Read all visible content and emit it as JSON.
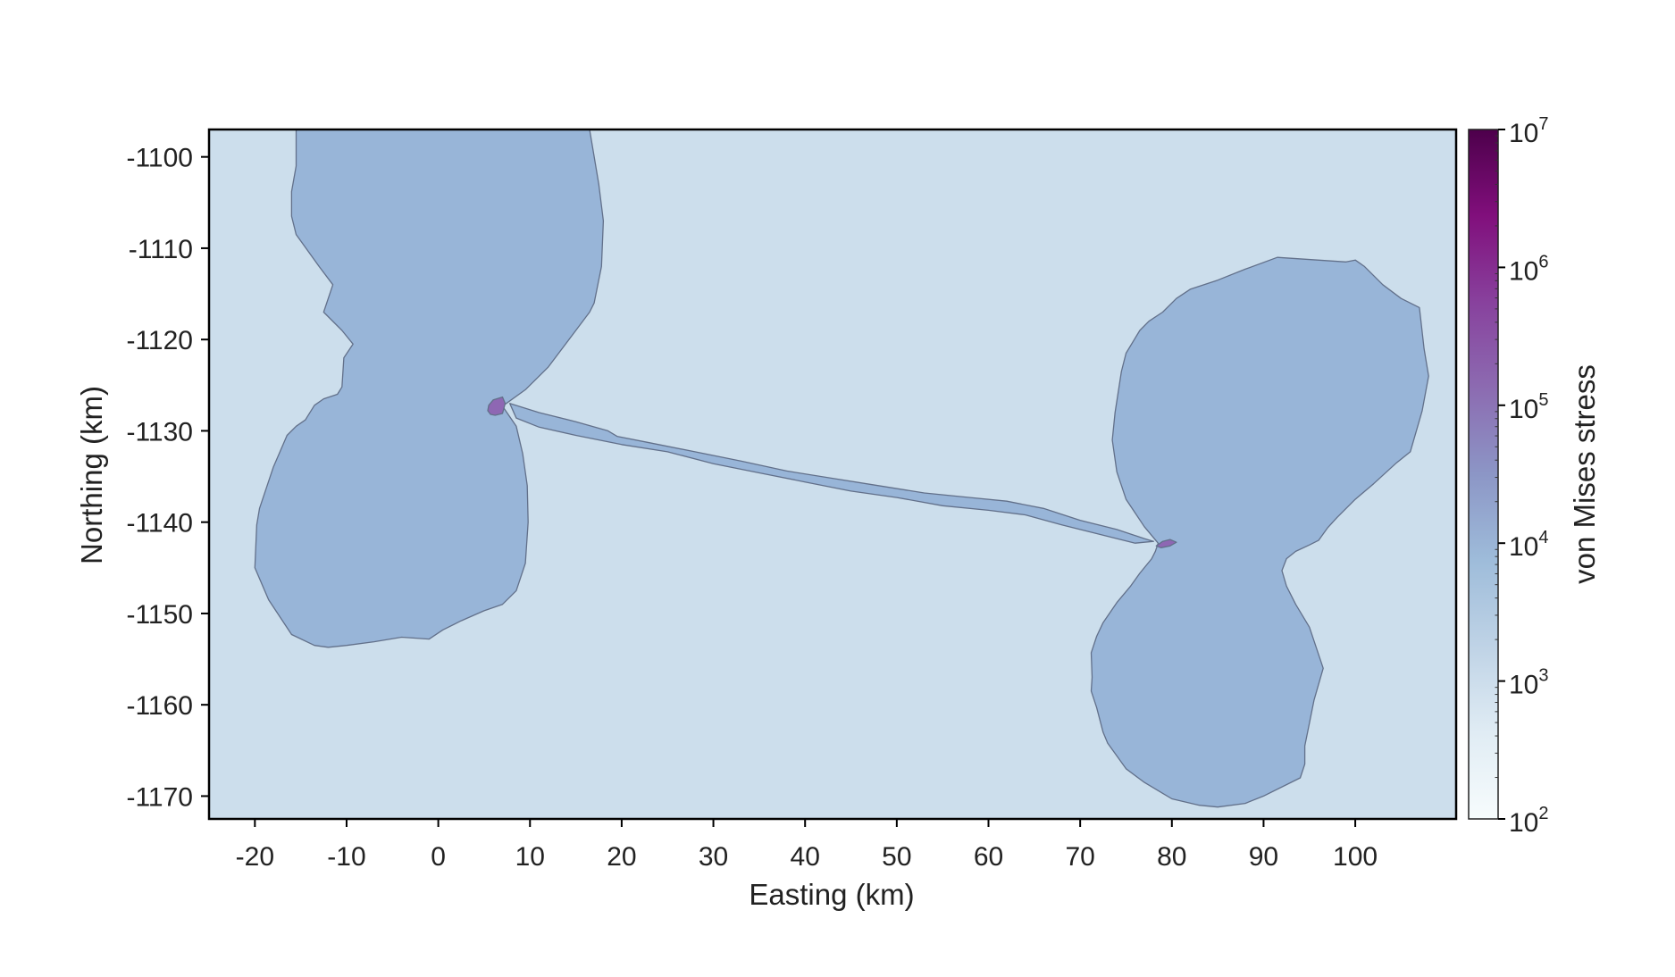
{
  "chart_data": {
    "type": "contour",
    "title": "",
    "xlabel": "Easting (km)",
    "ylabel": "Northing (km)",
    "xlim": [
      -25,
      111
    ],
    "ylim": [
      -1172.5,
      -1097
    ],
    "xticks": [
      -20,
      -10,
      0,
      10,
      20,
      30,
      40,
      50,
      60,
      70,
      80,
      90,
      100
    ],
    "yticks": [
      -1100,
      -1110,
      -1120,
      -1130,
      -1140,
      -1150,
      -1160,
      -1170
    ],
    "xtick_labels": [
      "-20",
      "-10",
      "0",
      "10",
      "20",
      "30",
      "40",
      "50",
      "60",
      "70",
      "80",
      "90",
      "100"
    ],
    "ytick_labels": [
      "-1100",
      "-1110",
      "-1120",
      "-1130",
      "-1140",
      "-1150",
      "-1160",
      "-1170"
    ],
    "grid": false,
    "colorbar": {
      "label": "von Mises stress",
      "scale": "log",
      "range": [
        100,
        10000000
      ],
      "tick_base": "10",
      "tick_exponents": [
        "2",
        "3",
        "4",
        "5",
        "6",
        "7"
      ],
      "colormap": [
        "#f7fcfd",
        "#e0ecf4",
        "#bfd3e6",
        "#9ebcda",
        "#8c96c6",
        "#8c6bb1",
        "#88419d",
        "#810f7c",
        "#4d004b"
      ]
    },
    "levels": [
      {
        "range": [
          1000,
          10000
        ],
        "color": "#ccdeec"
      },
      {
        "range": [
          10000,
          100000
        ],
        "color": "#98b5d8"
      },
      {
        "range": [
          100000,
          1000000
        ],
        "color": "#8e67b3"
      }
    ],
    "regions": [
      {
        "level": 1,
        "points": [
          [
            -15.5,
            -1097
          ],
          [
            16.5,
            -1097
          ],
          [
            17.5,
            -1103
          ],
          [
            18,
            -1107
          ],
          [
            17.8,
            -1112
          ],
          [
            17,
            -1116
          ],
          [
            16.5,
            -1117
          ],
          [
            15,
            -1119
          ],
          [
            12,
            -1123
          ],
          [
            9.5,
            -1125.5
          ],
          [
            7,
            -1127.3
          ],
          [
            8.5,
            -1129.5
          ],
          [
            9.2,
            -1132.5
          ],
          [
            9.7,
            -1136
          ],
          [
            9.8,
            -1140
          ],
          [
            9.5,
            -1144.5
          ],
          [
            8.5,
            -1147.5
          ],
          [
            7,
            -1149
          ],
          [
            5,
            -1149.7
          ],
          [
            2.5,
            -1150.8
          ],
          [
            0.5,
            -1151.8
          ],
          [
            -1,
            -1152.8
          ],
          [
            -4,
            -1152.6
          ],
          [
            -7,
            -1153.1
          ],
          [
            -10,
            -1153.5
          ],
          [
            -12,
            -1153.7
          ],
          [
            -13.5,
            -1153.5
          ],
          [
            -16,
            -1152.3
          ],
          [
            -18.5,
            -1148.5
          ],
          [
            -20,
            -1145
          ],
          [
            -19.8,
            -1140.3
          ],
          [
            -19.5,
            -1138.5
          ],
          [
            -18,
            -1134
          ],
          [
            -16.5,
            -1130.5
          ],
          [
            -15.5,
            -1129.5
          ],
          [
            -14.5,
            -1128.8
          ],
          [
            -13.5,
            -1127.2
          ],
          [
            -12.5,
            -1126.5
          ],
          [
            -11,
            -1126
          ],
          [
            -10.5,
            -1125.2
          ],
          [
            -10.3,
            -1122
          ],
          [
            -9.3,
            -1120.5
          ],
          [
            -10.5,
            -1119
          ],
          [
            -12.5,
            -1117
          ],
          [
            -11.5,
            -1114
          ],
          [
            -13,
            -1112
          ],
          [
            -15.5,
            -1108.5
          ],
          [
            -16,
            -1106.5
          ],
          [
            -16,
            -1103.8
          ],
          [
            -15.5,
            -1101
          ]
        ]
      },
      {
        "level": 1,
        "points": [
          [
            7.8,
            -1127
          ],
          [
            11,
            -1128
          ],
          [
            15,
            -1129
          ],
          [
            18.5,
            -1130
          ],
          [
            19.5,
            -1130.6
          ],
          [
            23,
            -1131.3
          ],
          [
            28,
            -1132.3
          ],
          [
            33,
            -1133.3
          ],
          [
            38,
            -1134.4
          ],
          [
            43,
            -1135.2
          ],
          [
            48,
            -1136
          ],
          [
            53,
            -1136.8
          ],
          [
            58,
            -1137.3
          ],
          [
            62,
            -1137.7
          ],
          [
            66,
            -1138.5
          ],
          [
            70,
            -1139.8
          ],
          [
            74,
            -1140.8
          ],
          [
            77,
            -1141.8
          ],
          [
            78,
            -1142.1
          ],
          [
            76,
            -1142.3
          ],
          [
            72,
            -1141.3
          ],
          [
            68,
            -1140.3
          ],
          [
            64,
            -1139.2
          ],
          [
            60,
            -1138.7
          ],
          [
            55,
            -1138.2
          ],
          [
            50,
            -1137.3
          ],
          [
            45,
            -1136.6
          ],
          [
            40,
            -1135.6
          ],
          [
            35,
            -1134.6
          ],
          [
            30,
            -1133.6
          ],
          [
            25,
            -1132.3
          ],
          [
            20,
            -1131.5
          ],
          [
            15,
            -1130.5
          ],
          [
            11,
            -1129.6
          ],
          [
            8.5,
            -1128.6
          ]
        ]
      },
      {
        "level": 1,
        "points": [
          [
            91.5,
            -1111
          ],
          [
            99,
            -1111.5
          ],
          [
            100,
            -1111.3
          ],
          [
            101,
            -1112
          ],
          [
            103,
            -1114
          ],
          [
            105,
            -1115.5
          ],
          [
            107,
            -1116.5
          ],
          [
            107.5,
            -1121
          ],
          [
            108,
            -1124
          ],
          [
            107.3,
            -1127.8
          ],
          [
            106,
            -1132.3
          ],
          [
            104.5,
            -1133.5
          ],
          [
            102,
            -1135.8
          ],
          [
            100,
            -1137.5
          ],
          [
            98,
            -1139.5
          ],
          [
            97,
            -1140.6
          ],
          [
            96,
            -1142
          ],
          [
            95,
            -1142.5
          ],
          [
            93.5,
            -1143.2
          ],
          [
            92.5,
            -1144
          ],
          [
            92,
            -1145.3
          ],
          [
            92.5,
            -1147
          ],
          [
            93.5,
            -1149
          ],
          [
            95,
            -1151.5
          ],
          [
            95.5,
            -1153
          ],
          [
            96.5,
            -1156
          ],
          [
            95.5,
            -1159.5
          ],
          [
            95,
            -1162
          ],
          [
            94.5,
            -1164.5
          ],
          [
            94.5,
            -1166.5
          ],
          [
            94,
            -1168
          ],
          [
            90,
            -1170
          ],
          [
            88,
            -1170.8
          ],
          [
            85,
            -1171.2
          ],
          [
            83,
            -1171
          ],
          [
            80,
            -1170.3
          ],
          [
            77,
            -1168.5
          ],
          [
            75,
            -1167
          ],
          [
            73,
            -1164.2
          ],
          [
            72.5,
            -1163
          ],
          [
            71.8,
            -1160.3
          ],
          [
            71.2,
            -1158.5
          ],
          [
            71.3,
            -1157
          ],
          [
            71.2,
            -1154.3
          ],
          [
            71.8,
            -1152.5
          ],
          [
            72.5,
            -1151
          ],
          [
            74,
            -1148.8
          ],
          [
            75.5,
            -1147
          ],
          [
            76.5,
            -1145.6
          ],
          [
            77.8,
            -1144
          ],
          [
            78.2,
            -1143.2
          ],
          [
            78.5,
            -1142.3
          ],
          [
            77,
            -1140.5
          ],
          [
            75,
            -1137.5
          ],
          [
            74,
            -1134.5
          ],
          [
            73.5,
            -1131
          ],
          [
            73.8,
            -1128
          ],
          [
            74.5,
            -1123.5
          ],
          [
            75,
            -1121.5
          ],
          [
            76.5,
            -1119
          ],
          [
            77.5,
            -1118
          ],
          [
            79,
            -1117
          ],
          [
            80.5,
            -1115.5
          ],
          [
            82,
            -1114.5
          ],
          [
            85,
            -1113.5
          ],
          [
            88,
            -1112.3
          ]
        ]
      },
      {
        "level": 2,
        "points": [
          [
            5.5,
            -1127.2
          ],
          [
            6,
            -1126.6
          ],
          [
            7,
            -1126.3
          ],
          [
            7.3,
            -1127
          ],
          [
            7,
            -1128.1
          ],
          [
            6.2,
            -1128.3
          ],
          [
            5.7,
            -1128.2
          ],
          [
            5.4,
            -1127.8
          ]
        ]
      },
      {
        "level": 2,
        "points": [
          [
            78.3,
            -1142.6
          ],
          [
            79,
            -1142.1
          ],
          [
            79.8,
            -1141.9
          ],
          [
            80.5,
            -1142.2
          ],
          [
            79.8,
            -1142.6
          ],
          [
            78.8,
            -1142.8
          ]
        ]
      }
    ]
  }
}
